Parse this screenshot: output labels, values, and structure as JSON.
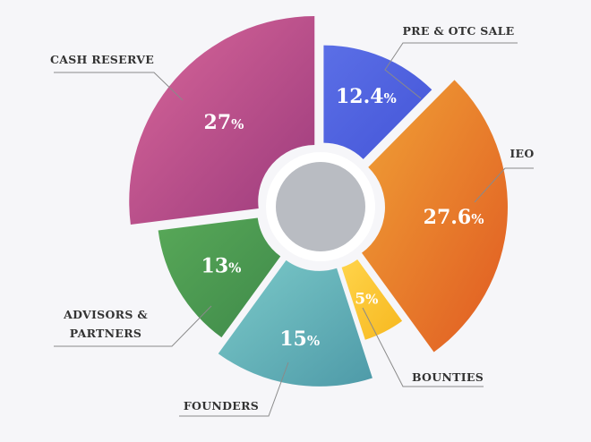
{
  "chart_data": {
    "type": "pie",
    "title": "",
    "slices": [
      {
        "name": "PRE & OTC SALE",
        "value": 12.4,
        "display": "12.4",
        "color": "#5b6fe6",
        "color2": "#4455d8"
      },
      {
        "name": "IEO",
        "value": 27.6,
        "display": "27.6",
        "color": "#f0a236",
        "color2": "#e05a22"
      },
      {
        "name": "BOUNTIES",
        "value": 5,
        "display": "5",
        "color": "#ffd44a",
        "color2": "#f7b820"
      },
      {
        "name": "FOUNDERS",
        "value": 15,
        "display": "15",
        "color": "#7ccac9",
        "color2": "#4e9aa8"
      },
      {
        "name": "ADVISORS & PARTNERS",
        "label_lines": [
          "ADVISORS &",
          "PARTNERS"
        ],
        "value": 13,
        "display": "13",
        "color": "#58a858",
        "color2": "#3f8a4a"
      },
      {
        "name": "CASH RESERVE",
        "value": 27,
        "display": "27",
        "color": "#d9679a",
        "color2": "#9b3a7c"
      }
    ],
    "percent_suffix": "%",
    "center_color": "#b9bcc2",
    "legend": "callouts"
  }
}
